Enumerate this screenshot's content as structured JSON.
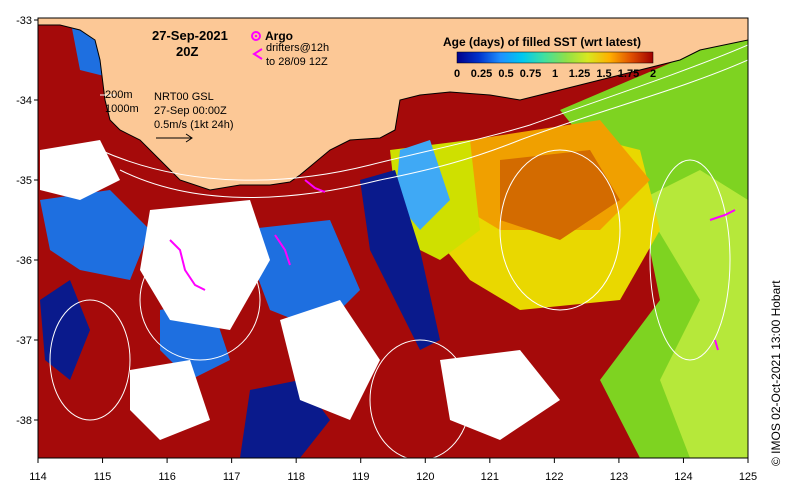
{
  "map": {
    "date_title": "27-Sep-2021",
    "time_title": "20Z",
    "legend": {
      "argo_label": "Argo",
      "drifters_label": "drifters@12h",
      "drifters_label_2": "to 28/09 12Z",
      "colorbar_title": "Age (days) of filled SST (wrt latest)",
      "colorbar_ticks": [
        "0",
        "0.25",
        "0.5",
        "0.75",
        "1",
        "1.25",
        "1.5",
        "1.75",
        "2"
      ],
      "colorbar_stops": [
        "#00008b",
        "#0033cc",
        "#1e90ff",
        "#00c8f0",
        "#40e0a0",
        "#8ee04a",
        "#d8e820",
        "#ffb000",
        "#e05000",
        "#a00000"
      ]
    },
    "contours": {
      "label_200": "200m",
      "label_1000": "1000m"
    },
    "currents": {
      "line1": "NRT00 GSL",
      "line2": "27-Sep 00:00Z",
      "line3": "0.5m/s (1kt 24h)"
    },
    "axes": {
      "lat_ticks": [
        "-33",
        "-34",
        "-35",
        "-36",
        "-37",
        "-38"
      ],
      "lon_ticks": [
        "114",
        "115",
        "116",
        "117",
        "118",
        "119",
        "120",
        "121",
        "122",
        "123",
        "124",
        "125"
      ]
    },
    "colors": {
      "land": "#fcc896",
      "old_data": "#a50a0a",
      "missing": "#ffffff",
      "argo": "#ff00ff"
    },
    "credit": "© IMOS 02-Oct-2021 13:00 Hobart"
  }
}
